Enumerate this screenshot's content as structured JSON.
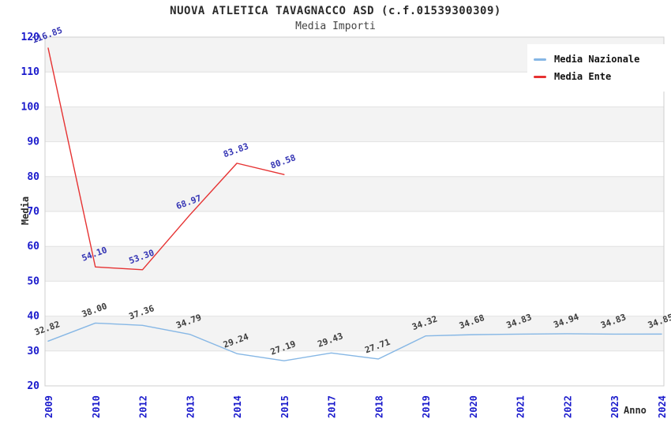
{
  "chart_data": {
    "type": "line",
    "title": "NUOVA ATLETICA TAVAGNACCO ASD (c.f.01539300309)",
    "subtitle": "Media Importi",
    "xlabel": "Anno",
    "ylabel": "Media",
    "ylim": [
      20,
      120
    ],
    "ytick_step": 10,
    "grid": true,
    "legend_position": "top-right",
    "categories": [
      "2009",
      "2010",
      "2012",
      "2013",
      "2014",
      "2015",
      "2017",
      "2018",
      "2019",
      "2020",
      "2021",
      "2022",
      "2023",
      "2024"
    ],
    "series": [
      {
        "name": "Media Nazionale",
        "color": "#86b7e5",
        "label_color": "#3c3c3c",
        "values": [
          32.82,
          38.0,
          37.36,
          34.79,
          29.24,
          27.19,
          29.43,
          27.71,
          34.32,
          34.68,
          34.83,
          34.94,
          34.83,
          34.85
        ]
      },
      {
        "name": "Media Ente",
        "color": "#e63232",
        "label_color": "#3434b4",
        "values": [
          116.85,
          54.1,
          53.3,
          68.97,
          83.83,
          80.58,
          null,
          null,
          null,
          null,
          null,
          null,
          null,
          null
        ]
      }
    ],
    "styles": {
      "band": "#f3f3f3",
      "gridline": "#e2e2e2",
      "border": "#cfcfcf",
      "tick_color": "#1a1acc"
    }
  }
}
